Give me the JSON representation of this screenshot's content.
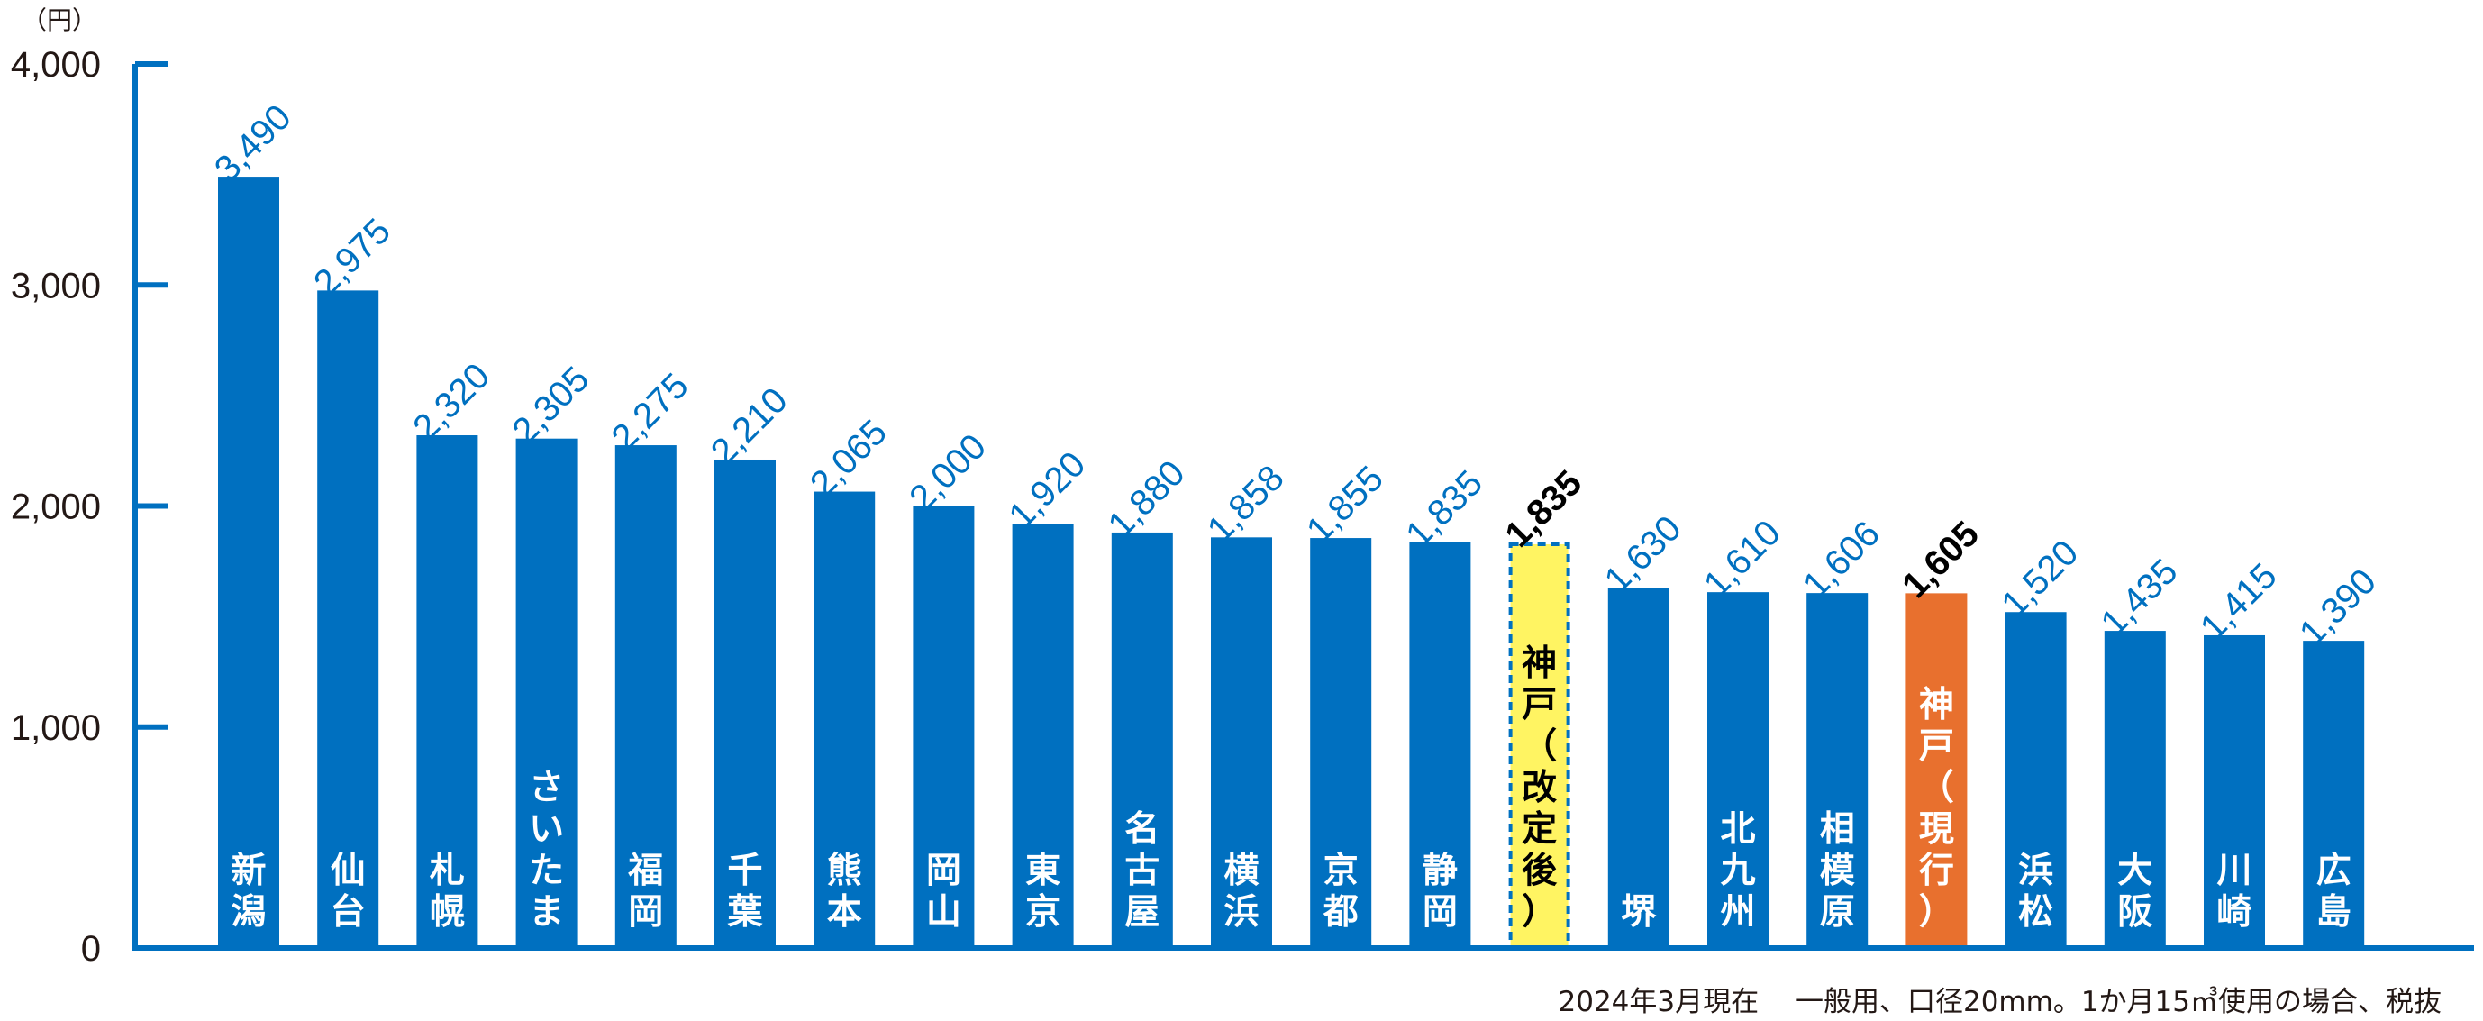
{
  "chart_data": {
    "type": "bar",
    "unit": "（円）",
    "ylim": [
      0,
      4000
    ],
    "yticks": [
      "0",
      "1,000",
      "2,000",
      "3,000",
      "4,000"
    ],
    "ytick_values": [
      0,
      1000,
      2000,
      3000,
      4000
    ],
    "categories": [
      "新潟",
      "仙台",
      "札幌",
      "さいたま",
      "福岡",
      "千葉",
      "熊本",
      "岡山",
      "東京",
      "名古屋",
      "横浜",
      "京都",
      "静岡",
      "神戸（改定後）",
      "堺",
      "北九州",
      "相模原",
      "神戸（現行）",
      "浜松",
      "大阪",
      "川崎",
      "広島"
    ],
    "values": [
      3490,
      2975,
      2320,
      2305,
      2275,
      2210,
      2065,
      2000,
      1920,
      1880,
      1858,
      1855,
      1835,
      1835,
      1630,
      1610,
      1606,
      1605,
      1520,
      1435,
      1415,
      1390
    ],
    "value_labels": [
      "3,490",
      "2,975",
      "2,320",
      "2,305",
      "2,275",
      "2,210",
      "2,065",
      "2,000",
      "1,920",
      "1,880",
      "1,858",
      "1,855",
      "1,835",
      "1,835",
      "1,630",
      "1,610",
      "1,606",
      "1,605",
      "1,520",
      "1,435",
      "1,415",
      "1,390"
    ],
    "highlight": {
      "13": {
        "style": "dashed",
        "fill": "#FFF462",
        "stroke": "#0070C0",
        "label_color": "#000000",
        "text_color": "#000000"
      },
      "17": {
        "style": "solid",
        "fill": "#E8702E",
        "label_color": "#000000",
        "text_color": "#ffffff"
      }
    },
    "colors": {
      "bar": "#0070C0",
      "value_label": "#0070C0",
      "axis": "#0070C0",
      "bar_text": "#ffffff"
    },
    "grid": false,
    "note": "2024年3月現在　 一般用、口径20mm。1か月15㎥使用の場合、税抜"
  }
}
